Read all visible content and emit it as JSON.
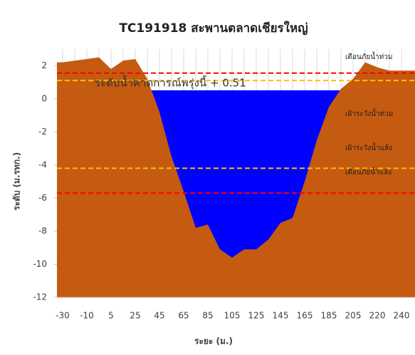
{
  "chart_data": {
    "type": "area",
    "title": "TC191918 สะพานตลาดเชียรใหญ่",
    "x_label": "ระยะ (ม.)",
    "y_label": "ระดับ (ม.รทก.)",
    "categories": [
      "-30",
      null,
      "-10",
      null,
      "5",
      null,
      "25",
      null,
      "45",
      null,
      "65",
      null,
      "85",
      null,
      "105",
      null,
      "125",
      null,
      "145",
      null,
      "165",
      null,
      "185",
      null,
      "205",
      null,
      "220",
      null,
      "240"
    ],
    "series": [
      {
        "color": "#c55a11",
        "values": [
          2.2,
          2.3,
          2.4,
          2.5,
          1.8,
          2.3,
          2.4,
          1.2,
          -0.8,
          -3.5,
          -5.6,
          -7.8,
          -7.6,
          -9.1,
          -9.6,
          -9.1,
          -9.1,
          -8.5,
          -7.5,
          -7.2,
          -5.0,
          -2.5,
          -0.5,
          0.6,
          1.2,
          2.2,
          1.9,
          1.7,
          1.7
        ]
      }
    ],
    "water_level": 0.51,
    "water_color": "#0000ff",
    "forecast_label": "ระดับน้ำคาดการณ์พรุ่งนี้ + 0.51",
    "thresholds": [
      {
        "name": "เตือนภัยน้ำท่วม",
        "value": 1.55,
        "color": "#ff0000"
      },
      {
        "name": "เฝ้าระวังน้ำท่วม",
        "value": 1.1,
        "color": "#ffc000"
      },
      {
        "name": "เฝ้าระวังน้ำแล้ง",
        "value": -4.2,
        "color": "#ffc000"
      },
      {
        "name": "เตือนภัยน้ำแล้ง",
        "value": -5.7,
        "color": "#ff0000"
      }
    ],
    "ylim": [
      -12,
      3
    ],
    "yticks": [
      -12,
      -10,
      -8,
      -6,
      -4,
      -2,
      0,
      2
    ],
    "grid": true
  }
}
